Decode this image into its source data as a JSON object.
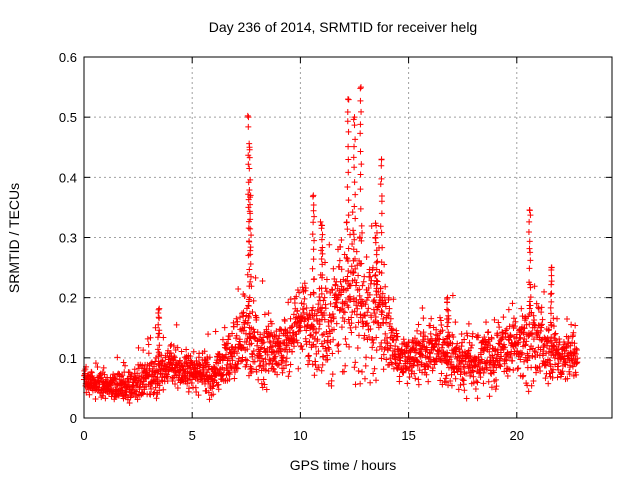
{
  "chart_data": {
    "type": "scatter",
    "title": "Day 236 of 2014, SRMTID for receiver helg",
    "xlabel": "GPS time / hours",
    "ylabel": "SRMTID / TECUs",
    "xlim": [
      0,
      24.4
    ],
    "ylim": [
      0,
      0.6
    ],
    "xticks": [
      "0",
      "5",
      "10",
      "15",
      "20"
    ],
    "xtick_values": [
      0,
      5,
      10,
      15,
      20
    ],
    "yticks": [
      "0",
      "0.1",
      "0.2",
      "0.3",
      "0.4",
      "0.5",
      "0.6"
    ],
    "ytick_values": [
      0,
      0.1,
      0.2,
      0.3,
      0.4,
      0.5,
      0.6
    ],
    "grid": true,
    "marker": "plus",
    "series_color": "#ff0000",
    "x_range_observed": [
      0,
      22.8
    ],
    "envelope": {
      "description": "approximate baseline and spread of SRMTID values over GPS time",
      "hours": [
        0,
        1,
        2,
        3,
        4,
        5,
        6,
        7,
        7.6,
        8,
        9,
        10,
        10.5,
        11,
        12,
        12.5,
        13,
        13.8,
        14.5,
        15,
        16,
        17,
        18,
        19,
        20,
        20.6,
        21,
        22,
        22.8
      ],
      "median": [
        0.06,
        0.055,
        0.05,
        0.07,
        0.085,
        0.08,
        0.075,
        0.11,
        0.14,
        0.12,
        0.1,
        0.17,
        0.15,
        0.16,
        0.18,
        0.2,
        0.19,
        0.17,
        0.1,
        0.1,
        0.11,
        0.1,
        0.09,
        0.11,
        0.12,
        0.14,
        0.13,
        0.1,
        0.1
      ],
      "spread": [
        0.025,
        0.02,
        0.02,
        0.035,
        0.03,
        0.025,
        0.03,
        0.045,
        0.07,
        0.05,
        0.04,
        0.06,
        0.07,
        0.07,
        0.09,
        0.11,
        0.1,
        0.08,
        0.04,
        0.035,
        0.04,
        0.04,
        0.04,
        0.045,
        0.05,
        0.06,
        0.055,
        0.04,
        0.035
      ]
    },
    "peaks": [
      {
        "x": 3.45,
        "y": 0.18
      },
      {
        "x": 7.6,
        "y": 0.5
      },
      {
        "x": 7.65,
        "y": 0.45
      },
      {
        "x": 7.7,
        "y": 0.37
      },
      {
        "x": 10.6,
        "y": 0.37
      },
      {
        "x": 11.0,
        "y": 0.32
      },
      {
        "x": 12.2,
        "y": 0.53
      },
      {
        "x": 12.5,
        "y": 0.5
      },
      {
        "x": 12.8,
        "y": 0.55
      },
      {
        "x": 13.5,
        "y": 0.32
      },
      {
        "x": 13.75,
        "y": 0.43
      },
      {
        "x": 16.8,
        "y": 0.2
      },
      {
        "x": 20.6,
        "y": 0.345
      },
      {
        "x": 21.6,
        "y": 0.25
      }
    ],
    "point_count": 2300
  }
}
